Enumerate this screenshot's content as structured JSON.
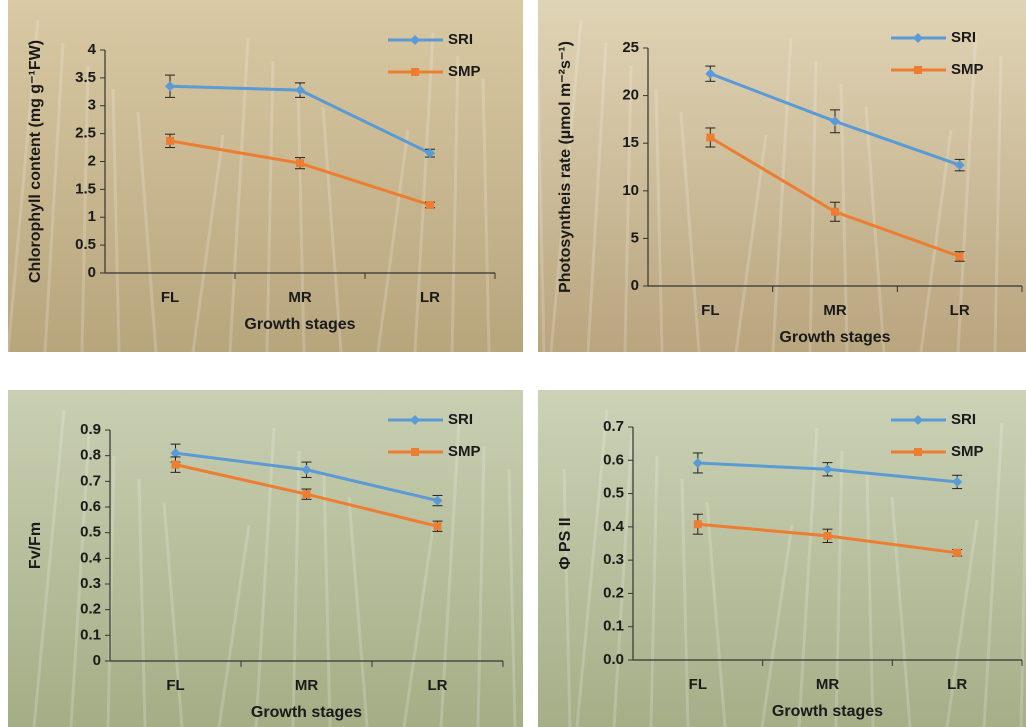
{
  "chart_data": [
    {
      "type": "line",
      "categories": [
        "FL",
        "MR",
        "LR"
      ],
      "x_label": "Growth stages",
      "y_label": "Chlorophyll content (mg g⁻¹FW)",
      "ylim": [
        0,
        4
      ],
      "yticks": [
        0,
        0.5,
        1,
        1.5,
        2,
        2.5,
        3,
        3.5,
        4
      ],
      "legend": "upper right",
      "series": [
        {
          "name": "SRI",
          "color": "#5b9bd5",
          "marker": "diamond",
          "values": [
            3.35,
            3.28,
            2.15
          ],
          "errors": [
            0.2,
            0.13,
            0.07
          ]
        },
        {
          "name": "SMP",
          "color": "#ed7d31",
          "marker": "square",
          "values": [
            2.37,
            1.97,
            1.22
          ],
          "errors": [
            0.12,
            0.1,
            0.05
          ]
        }
      ]
    },
    {
      "type": "line",
      "categories": [
        "FL",
        "MR",
        "LR"
      ],
      "x_label": "Growth stages",
      "y_label": "Photosyntheis rate (µmol m⁻²s⁻¹)",
      "ylim": [
        0,
        25
      ],
      "yticks": [
        0,
        5,
        10,
        15,
        20,
        25
      ],
      "legend": "upper right",
      "series": [
        {
          "name": "SRI",
          "color": "#5b9bd5",
          "marker": "diamond",
          "values": [
            22.3,
            17.3,
            12.7
          ],
          "errors": [
            0.8,
            1.2,
            0.6
          ]
        },
        {
          "name": "SMP",
          "color": "#ed7d31",
          "marker": "square",
          "values": [
            15.6,
            7.8,
            3.1
          ],
          "errors": [
            1.0,
            1.0,
            0.5
          ]
        }
      ]
    },
    {
      "type": "line",
      "categories": [
        "FL",
        "MR",
        "LR"
      ],
      "x_label": "Growth stages",
      "y_label": "Fv/Fm",
      "ylim": [
        0,
        0.9
      ],
      "yticks": [
        0,
        0.1,
        0.2,
        0.3,
        0.4,
        0.5,
        0.6,
        0.7,
        0.8,
        0.9
      ],
      "legend": "upper right",
      "series": [
        {
          "name": "SRI",
          "color": "#5b9bd5",
          "marker": "diamond",
          "values": [
            0.81,
            0.745,
            0.625
          ],
          "errors": [
            0.035,
            0.03,
            0.02
          ]
        },
        {
          "name": "SMP",
          "color": "#ed7d31",
          "marker": "square",
          "values": [
            0.765,
            0.65,
            0.525
          ],
          "errors": [
            0.03,
            0.02,
            0.02
          ]
        }
      ]
    },
    {
      "type": "line",
      "categories": [
        "FL",
        "MR",
        "LR"
      ],
      "x_label": "Growth stages",
      "y_label": "Φ PS II",
      "ylim": [
        0,
        0.7
      ],
      "yticks": [
        {
          "value": 0,
          "label": "0.0"
        },
        0.1,
        0.2,
        0.3,
        0.4,
        0.5,
        0.6,
        0.7
      ],
      "legend": "upper right",
      "series": [
        {
          "name": "SRI",
          "color": "#5b9bd5",
          "marker": "diamond",
          "values": [
            0.592,
            0.573,
            0.535
          ],
          "errors": [
            0.03,
            0.02,
            0.02
          ]
        },
        {
          "name": "SMP",
          "color": "#ed7d31",
          "marker": "square",
          "values": [
            0.408,
            0.373,
            0.322
          ],
          "errors": [
            0.03,
            0.02,
            0.01
          ]
        }
      ]
    }
  ]
}
